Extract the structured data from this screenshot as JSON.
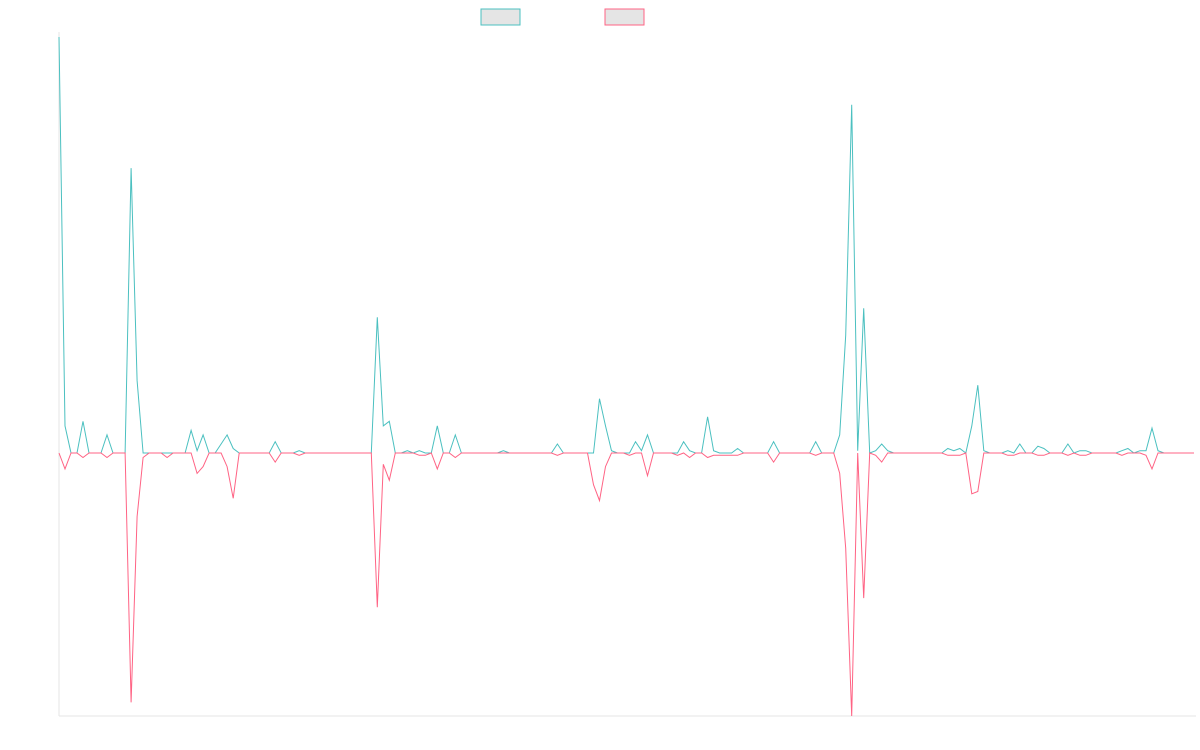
{
  "chart_data": {
    "type": "line",
    "title": "",
    "xlabel": "",
    "ylabel": "",
    "grid": false,
    "legend_position": "top-center",
    "x_count": 190,
    "ylim": [
      -0.58,
      0.92
    ],
    "series": [
      {
        "color": "#4bc0c0",
        "legend_fill": "#e5e5e5",
        "sparse_values": {
          "0": 0.92,
          "1": 0.06,
          "4": 0.07,
          "8": 0.04,
          "12": 0.63,
          "13": 0.16,
          "22": 0.05,
          "23": 0.005,
          "24": 0.04,
          "27": 0.02,
          "28": 0.04,
          "29": 0.01,
          "36": 0.025,
          "40": 0.005,
          "53": 0.3,
          "54": 0.06,
          "55": 0.07,
          "58": 0.005,
          "60": 0.005,
          "63": 0.06,
          "66": 0.04,
          "74": 0.005,
          "83": 0.02,
          "90": 0.12,
          "91": 0.06,
          "92": 0.005,
          "96": 0.025,
          "97": 0.005,
          "98": 0.04,
          "104": 0.025,
          "105": 0.005,
          "108": 0.08,
          "109": 0.005,
          "113": 0.01,
          "119": 0.025,
          "126": 0.025,
          "130": 0.04,
          "131": 0.26,
          "132": 0.77,
          "133": 0.005,
          "134": 0.32,
          "136": 0.005,
          "137": 0.02,
          "138": 0.005,
          "148": 0.01,
          "149": 0.005,
          "150": 0.01,
          "152": 0.06,
          "153": 0.15,
          "154": 0.005,
          "158": 0.005,
          "160": 0.02,
          "163": 0.015,
          "164": 0.01,
          "168": 0.02,
          "170": 0.005,
          "171": 0.005,
          "177": 0.005,
          "178": 0.01,
          "180": 0.005,
          "181": 0.005,
          "182": 0.055,
          "183": 0.005,
          "189": 0.0
        }
      },
      {
        "color": "#ff6384",
        "legend_fill": "#e5e5e5",
        "sparse_values": {
          "1": -0.035,
          "4": -0.01,
          "8": -0.01,
          "12": -0.55,
          "13": -0.14,
          "14": -0.01,
          "18": -0.01,
          "23": -0.045,
          "24": -0.03,
          "28": -0.03,
          "29": -0.1,
          "36": -0.02,
          "40": -0.005,
          "53": -0.34,
          "54": -0.025,
          "55": -0.06,
          "60": -0.005,
          "61": -0.005,
          "63": -0.035,
          "66": -0.01,
          "83": -0.005,
          "89": -0.07,
          "90": -0.105,
          "91": -0.03,
          "95": -0.005,
          "98": -0.05,
          "103": -0.005,
          "105": -0.01,
          "108": -0.01,
          "109": -0.005,
          "110": -0.005,
          "111": -0.005,
          "112": -0.005,
          "113": -0.005,
          "119": -0.02,
          "126": -0.005,
          "130": -0.045,
          "131": -0.21,
          "132": -0.58,
          "134": -0.32,
          "136": -0.005,
          "137": -0.02,
          "148": -0.005,
          "149": -0.005,
          "150": -0.005,
          "152": -0.09,
          "153": -0.085,
          "158": -0.005,
          "159": -0.005,
          "163": -0.005,
          "164": -0.005,
          "168": -0.005,
          "170": -0.005,
          "171": -0.005,
          "177": -0.005,
          "181": -0.005,
          "182": -0.035,
          "189": 0.0
        }
      }
    ]
  }
}
